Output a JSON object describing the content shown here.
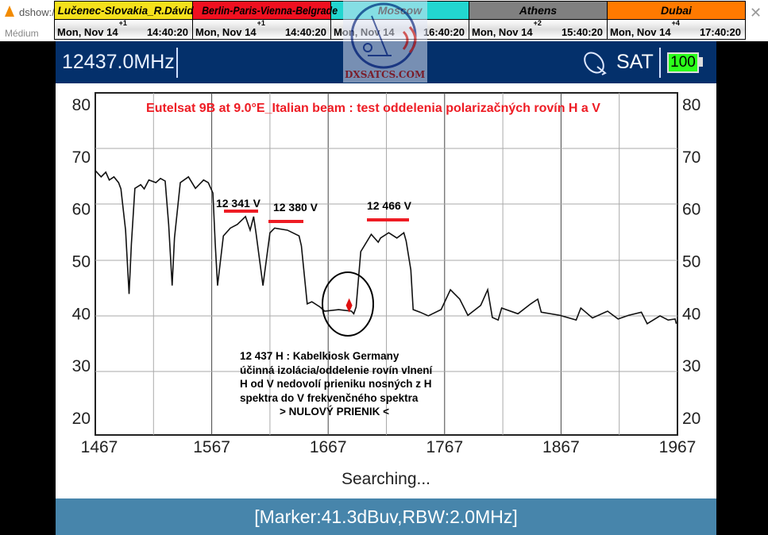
{
  "vlc": {
    "title": "dshow://",
    "menu_item": "Médium"
  },
  "clocks": [
    {
      "city": "Lučenec-Slovakia_R.Dávid",
      "date": "Mon, Nov 14",
      "tz": "+1",
      "time": "14:40:20",
      "bg": "#f5e11c",
      "fg": "#000000"
    },
    {
      "city": "Berlin-Paris-Vienna-Belgrade",
      "date": "Mon, Nov 14",
      "tz": "+1",
      "time": "14:40:20",
      "bg": "#f01020",
      "fg": "#000000"
    },
    {
      "city": "Moscow",
      "date": "Mon, Nov 14",
      "tz": "",
      "time": "16:40:20",
      "bg": "#22d6d0",
      "fg": "#000000"
    },
    {
      "city": "Athens",
      "date": "Mon, Nov 14",
      "tz": "+2",
      "time": "15:40:20",
      "bg": "#808080",
      "fg": "#000000"
    },
    {
      "city": "Dubai",
      "date": "Mon, Nov 14",
      "tz": "+4",
      "time": "17:40:20",
      "bg": "#ff7a00",
      "fg": "#000000"
    }
  ],
  "header": {
    "frequency": "12437.0MHz",
    "mode": "SAT",
    "battery": "100",
    "bg": "#04306b"
  },
  "logo": {
    "text": "DXSATCS.COM"
  },
  "status": {
    "searching": "Searching...",
    "marker_line": "[Marker:41.3dBuv,RBW:2.0MHz]"
  },
  "annotations": {
    "title": "Eutelsat 9B at 9.0°E_Italian beam : test oddelenia polarizačných rovín H a V",
    "labels": [
      "12 341 V",
      "12 380 V",
      "12 466 V"
    ],
    "note_lines": [
      "12 437 H : Kabelkiosk Germany",
      "účinná izolácia/oddelenie rovín vlnení",
      "H od V nedovolí prieniku nosných z H",
      "spektra do V frekvenčného spektra",
      "> NULOVÝ PRIENIK <"
    ]
  },
  "chart_data": {
    "type": "line",
    "title": "Eutelsat 9B at 9.0°E_Italian beam : test oddelenia polarizačných rovín H a V",
    "xlim": [
      1467,
      1967
    ],
    "ylim": [
      20,
      80
    ],
    "x_ticks": [
      "1467",
      "1567",
      "1667",
      "1767",
      "1867",
      "1967"
    ],
    "y_ticks": [
      "80",
      "70",
      "60",
      "50",
      "40",
      "30",
      "20"
    ],
    "grid": true,
    "trace_color": "#111111",
    "marker": {
      "x": 1685,
      "y": 41.3,
      "color": "#e01010"
    },
    "series": [
      {
        "x": [
          1467,
          1472,
          1476,
          1479,
          1483,
          1487,
          1489,
          1493,
          1496,
          1498,
          1501,
          1506,
          1509,
          1513,
          1519,
          1523,
          1527,
          1530,
          1533,
          1535,
          1540,
          1547,
          1553,
          1560,
          1564,
          1568,
          1570,
          1572,
          1577,
          1583,
          1589,
          1596,
          1600,
          1603,
          1605,
          1611,
          1617,
          1621,
          1632,
          1642,
          1644,
          1649,
          1653,
          1660,
          1664,
          1676,
          1687,
          1689,
          1691,
          1695,
          1704,
          1710,
          1712,
          1719,
          1726,
          1732,
          1734,
          1738,
          1740,
          1746,
          1753,
          1764,
          1772,
          1780,
          1787,
          1798,
          1804,
          1808,
          1813,
          1816,
          1830,
          1841,
          1847,
          1850,
          1866,
          1880,
          1884,
          1894,
          1907,
          1916,
          1925,
          1936,
          1941,
          1952,
          1959,
          1965,
          1966
        ],
        "y": [
          67.1,
          65.9,
          66.8,
          65.3,
          65.9,
          64.8,
          63.6,
          55.7,
          43.5,
          53.1,
          63.7,
          64.4,
          63.6,
          65.3,
          64.8,
          65.6,
          65.1,
          56.8,
          45.1,
          54.2,
          64.8,
          65.9,
          63.7,
          65.3,
          64.8,
          62.8,
          53.1,
          45.1,
          54.6,
          56.1,
          56.8,
          58.3,
          55.7,
          58.3,
          55.2,
          45.1,
          55.2,
          56.1,
          55.7,
          54.6,
          52.7,
          41.6,
          42.0,
          41.0,
          40.2,
          40.5,
          40.2,
          39.7,
          41.0,
          51.6,
          54.9,
          53.4,
          54.2,
          55.2,
          54.2,
          55.2,
          53.6,
          48.1,
          40.5,
          40.0,
          39.3,
          40.5,
          44.3,
          42.5,
          39.4,
          41.3,
          44.3,
          39.0,
          38.5,
          40.8,
          39.7,
          41.6,
          42.5,
          40.0,
          39.4,
          38.5,
          40.8,
          38.9,
          40.2,
          38.7,
          39.4,
          40.0,
          37.8,
          39.3,
          38.5,
          38.7,
          37.8
        ]
      }
    ]
  }
}
